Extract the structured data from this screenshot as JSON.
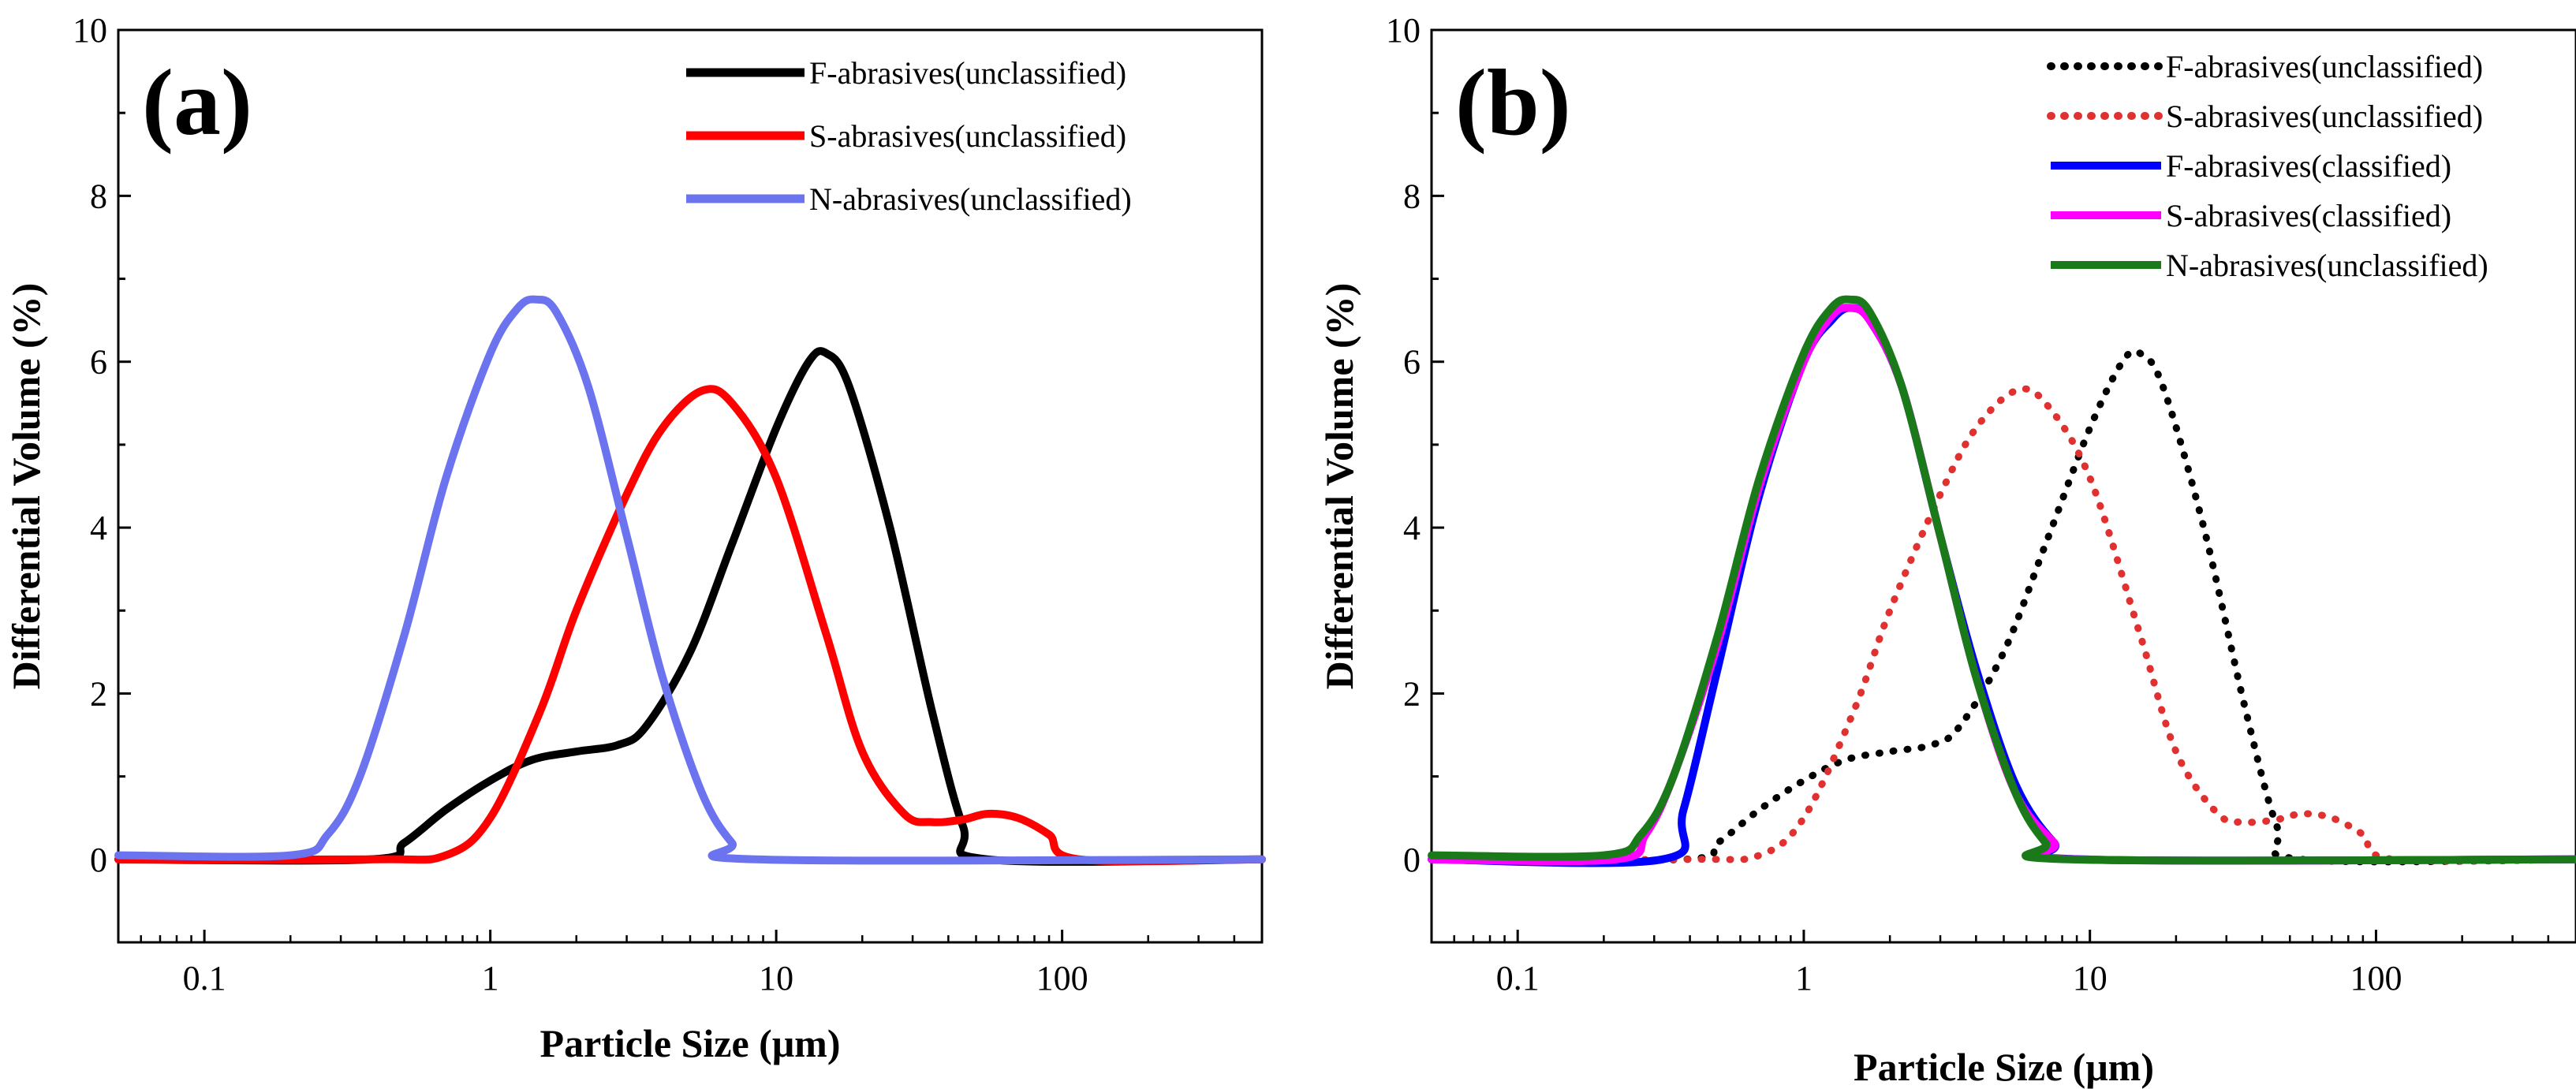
{
  "chart_data": [
    {
      "type": "line",
      "panel_label": "(a)",
      "xlabel": "Particle Size (μm)",
      "ylabel": "Differential Volume (%)",
      "xscale": "log",
      "xlim": [
        0.05,
        500
      ],
      "ylim": [
        -1,
        10
      ],
      "xticks": [
        0.1,
        1,
        10,
        100
      ],
      "xtick_labels": [
        "0.1",
        "1",
        "10",
        "100"
      ],
      "yticks": [
        0,
        2,
        4,
        6,
        8,
        10
      ],
      "ytick_labels": [
        "0",
        "2",
        "4",
        "6",
        "8",
        "10"
      ],
      "legend_position": "top-right",
      "series": [
        {
          "name": "F-abrasives(unclassified)",
          "color": "#000000",
          "style": "solid",
          "x": [
            0.05,
            0.38,
            0.5,
            0.7,
            1.0,
            1.4,
            2.0,
            2.8,
            3.5,
            5.0,
            7.0,
            10,
            13,
            15,
            18,
            25,
            35,
            45,
            55,
            500
          ],
          "y": [
            0,
            0,
            0.2,
            0.6,
            0.95,
            1.2,
            1.3,
            1.38,
            1.6,
            2.5,
            3.8,
            5.2,
            6.0,
            6.1,
            5.7,
            4.0,
            1.8,
            0.4,
            0,
            0
          ]
        },
        {
          "name": "S-abrasives(unclassified)",
          "color": "#ff0000",
          "style": "solid",
          "x": [
            0.05,
            0.4,
            0.7,
            1.0,
            1.5,
            2.0,
            3.0,
            4.0,
            5.5,
            7.0,
            10,
            15,
            20,
            28,
            35,
            45,
            55,
            70,
            90,
            115,
            500
          ],
          "y": [
            0,
            0,
            0.05,
            0.5,
            1.8,
            3.0,
            4.4,
            5.2,
            5.65,
            5.5,
            4.6,
            2.7,
            1.3,
            0.55,
            0.45,
            0.48,
            0.55,
            0.5,
            0.3,
            0,
            0
          ]
        },
        {
          "name": "N-abrasives(unclassified)",
          "color": "#6b73ee",
          "style": "solid",
          "x": [
            0.05,
            0.2,
            0.27,
            0.35,
            0.5,
            0.7,
            1.0,
            1.25,
            1.45,
            1.7,
            2.2,
            3.0,
            4.0,
            5.5,
            7.0,
            8.5,
            500
          ],
          "y": [
            0.05,
            0.05,
            0.3,
            1.0,
            2.7,
            4.6,
            6.1,
            6.65,
            6.75,
            6.6,
            5.7,
            3.9,
            2.2,
            0.8,
            0.2,
            0,
            0
          ]
        }
      ]
    },
    {
      "type": "line",
      "panel_label": "(b)",
      "xlabel": "Particle Size (μm)",
      "ylabel": "Differential Volume (%)",
      "xscale": "log",
      "xlim": [
        0.05,
        500
      ],
      "ylim": [
        -1,
        10
      ],
      "xticks": [
        0.1,
        1,
        10,
        100
      ],
      "xtick_labels": [
        "0.1",
        "1",
        "10",
        "100"
      ],
      "yticks": [
        0,
        2,
        4,
        6,
        8,
        10
      ],
      "ytick_labels": [
        "0",
        "2",
        "4",
        "6",
        "8",
        "10"
      ],
      "legend_position": "top-right",
      "series": [
        {
          "name": "F-abrasives(unclassified)",
          "color": "#000000",
          "style": "dotted",
          "x": [
            0.05,
            0.38,
            0.5,
            0.7,
            1.0,
            1.4,
            2.0,
            2.8,
            3.5,
            5.0,
            7.0,
            10,
            13,
            15,
            18,
            25,
            35,
            45,
            55,
            500
          ],
          "y": [
            0,
            0,
            0.2,
            0.6,
            0.95,
            1.2,
            1.3,
            1.38,
            1.6,
            2.5,
            3.8,
            5.2,
            6.0,
            6.1,
            5.7,
            4.0,
            1.8,
            0.4,
            0,
            0
          ]
        },
        {
          "name": "S-abrasives(unclassified)",
          "color": "#e03030",
          "style": "dotted",
          "x": [
            0.05,
            0.4,
            0.7,
            1.0,
            1.5,
            2.0,
            3.0,
            4.0,
            5.5,
            7.0,
            10,
            15,
            20,
            28,
            35,
            45,
            55,
            70,
            90,
            115,
            500
          ],
          "y": [
            0,
            0,
            0.05,
            0.5,
            1.8,
            3.0,
            4.4,
            5.2,
            5.65,
            5.5,
            4.6,
            2.7,
            1.3,
            0.55,
            0.45,
            0.48,
            0.55,
            0.5,
            0.3,
            0,
            0
          ]
        },
        {
          "name": "F-abrasives(classified)",
          "color": "#0000ff",
          "style": "solid",
          "x": [
            0.05,
            0.32,
            0.38,
            0.5,
            0.7,
            1.0,
            1.25,
            1.45,
            1.7,
            2.2,
            3.0,
            4.0,
            5.5,
            7.5,
            9.5,
            500
          ],
          "y": [
            0,
            0,
            0.6,
            2.3,
            4.4,
            6.0,
            6.5,
            6.65,
            6.5,
            5.7,
            3.9,
            2.3,
            0.9,
            0.2,
            0,
            0
          ]
        },
        {
          "name": "S-abrasives(classified)",
          "color": "#ff00ff",
          "style": "solid",
          "x": [
            0.05,
            0.22,
            0.28,
            0.35,
            0.5,
            0.7,
            1.0,
            1.25,
            1.45,
            1.7,
            2.2,
            3.0,
            4.0,
            5.5,
            7.5,
            9.0,
            500
          ],
          "y": [
            0,
            0,
            0.3,
            1.0,
            2.6,
            4.5,
            6.0,
            6.55,
            6.65,
            6.5,
            5.7,
            3.9,
            2.2,
            0.8,
            0.2,
            0,
            0
          ]
        },
        {
          "name": "N-abrasives(unclassified)",
          "color": "#1a7a1a",
          "style": "solid",
          "x": [
            0.05,
            0.2,
            0.27,
            0.35,
            0.5,
            0.7,
            1.0,
            1.25,
            1.45,
            1.7,
            2.2,
            3.0,
            4.0,
            5.5,
            7.0,
            8.5,
            500
          ],
          "y": [
            0.05,
            0.05,
            0.3,
            1.0,
            2.7,
            4.6,
            6.1,
            6.65,
            6.75,
            6.6,
            5.7,
            3.9,
            2.2,
            0.8,
            0.2,
            0,
            0
          ]
        }
      ]
    }
  ]
}
